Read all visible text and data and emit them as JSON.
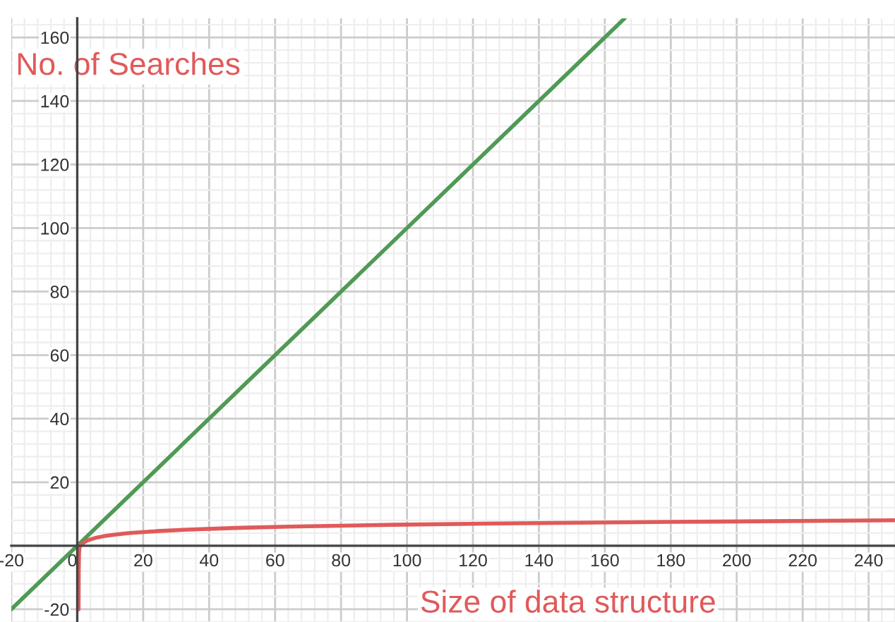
{
  "chart_data": {
    "type": "line",
    "xlabel": "Size of data structure",
    "ylabel": "No. of Searches",
    "xlim": [
      -20,
      248
    ],
    "ylim": [
      -24,
      166
    ],
    "xticks": [
      -20,
      0,
      20,
      40,
      60,
      80,
      100,
      120,
      140,
      160,
      180,
      200,
      220,
      240
    ],
    "yticks": [
      -20,
      20,
      40,
      60,
      80,
      100,
      120,
      140,
      160
    ],
    "grid": true,
    "legend": false,
    "series": [
      {
        "color": "#4f9a55",
        "x": [
          -20,
          166
        ],
        "values": [
          -20,
          166
        ]
      },
      {
        "color": "#e05a5a",
        "x": [
          0.4,
          0.45,
          0.55,
          0.7,
          1,
          1.5,
          2,
          3,
          4,
          6,
          8,
          12,
          16,
          24,
          32,
          48,
          64,
          96,
          128,
          180,
          248
        ],
        "values": [
          -20,
          -8,
          -2,
          -0.5,
          0,
          0.6,
          1,
          1.6,
          2,
          2.6,
          3,
          3.6,
          4,
          4.6,
          5,
          5.6,
          6,
          6.6,
          7,
          7.5,
          8
        ]
      }
    ]
  }
}
